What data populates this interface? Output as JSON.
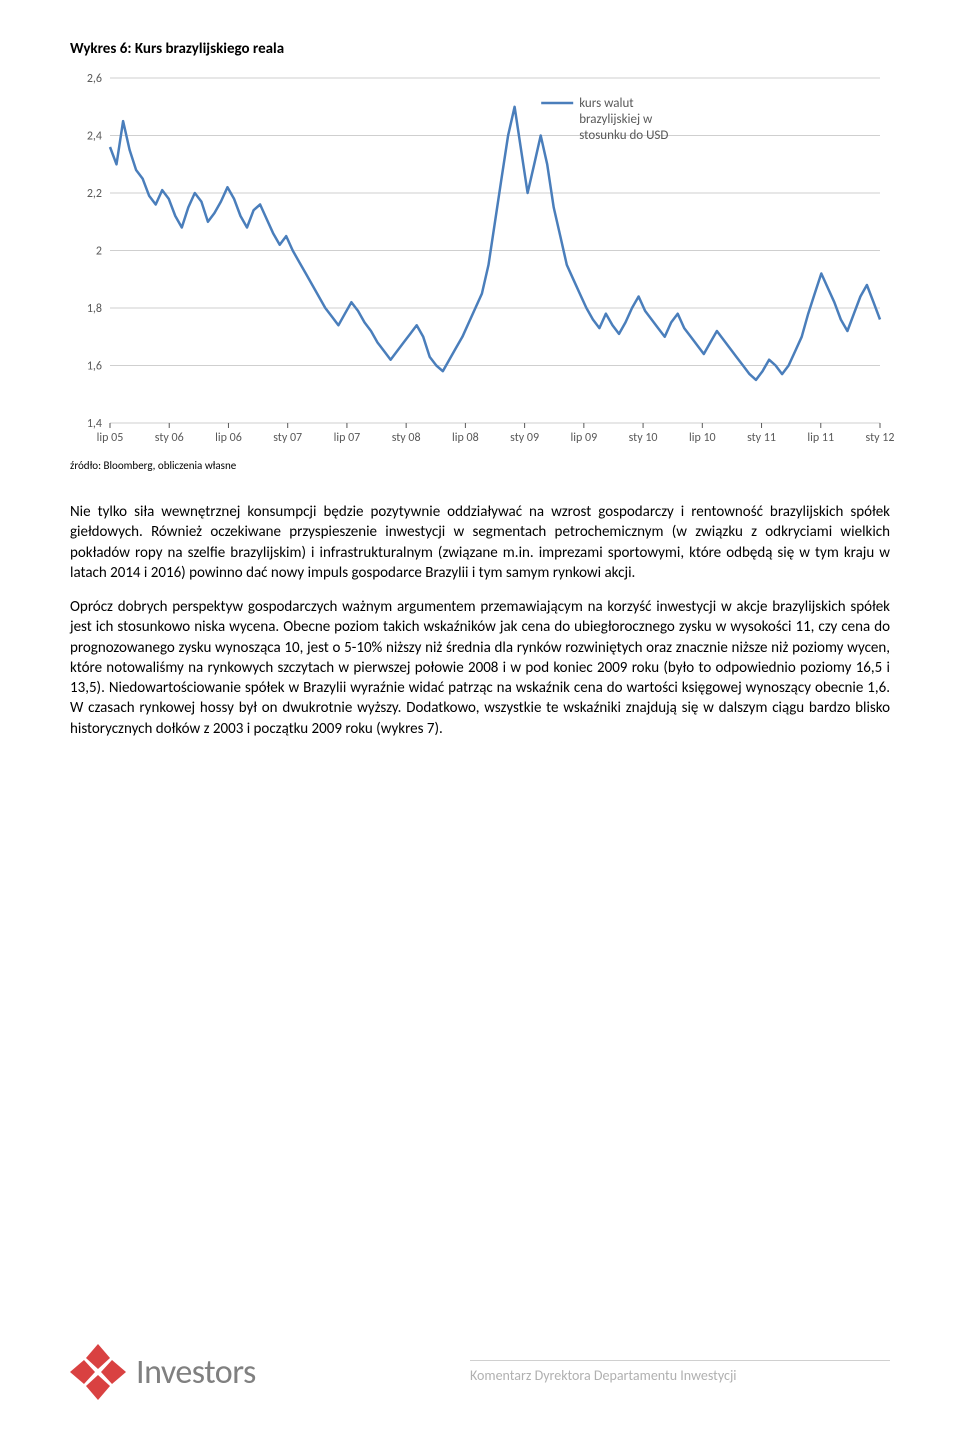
{
  "chart": {
    "type": "line",
    "title": "Wykres 6: Kurs brazylijskiego reala",
    "source": "źródło: Bloomberg, obliczenia własne",
    "series_name_1": "kurs walut",
    "series_name_2": "brazylijskiej w",
    "series_name_3": "stosunku do USD",
    "series_color": "#4a7ebb",
    "background_color": "#ffffff",
    "grid_color": "#bfbfbf",
    "axis_color": "#595959",
    "y_ticks": [
      "2,6",
      "2,4",
      "2,2",
      "2",
      "1,8",
      "1,6",
      "1,4"
    ],
    "y_values": [
      2.6,
      2.4,
      2.2,
      2.0,
      1.8,
      1.6,
      1.4
    ],
    "x_labels": [
      "lip 05",
      "sty 06",
      "lip 06",
      "sty 07",
      "lip 07",
      "sty 08",
      "lip 08",
      "sty 09",
      "lip 09",
      "sty 10",
      "lip 10",
      "sty 11",
      "lip 11",
      "sty 12"
    ],
    "data": [
      2.36,
      2.3,
      2.45,
      2.35,
      2.28,
      2.25,
      2.19,
      2.16,
      2.21,
      2.18,
      2.12,
      2.08,
      2.15,
      2.2,
      2.17,
      2.1,
      2.13,
      2.17,
      2.22,
      2.18,
      2.12,
      2.08,
      2.14,
      2.16,
      2.11,
      2.06,
      2.02,
      2.05,
      2.0,
      1.96,
      1.92,
      1.88,
      1.84,
      1.8,
      1.77,
      1.74,
      1.78,
      1.82,
      1.79,
      1.75,
      1.72,
      1.68,
      1.65,
      1.62,
      1.65,
      1.68,
      1.71,
      1.74,
      1.7,
      1.63,
      1.6,
      1.58,
      1.62,
      1.66,
      1.7,
      1.75,
      1.8,
      1.85,
      1.95,
      2.1,
      2.25,
      2.4,
      2.5,
      2.35,
      2.2,
      2.3,
      2.4,
      2.3,
      2.15,
      2.05,
      1.95,
      1.9,
      1.85,
      1.8,
      1.76,
      1.73,
      1.78,
      1.74,
      1.71,
      1.75,
      1.8,
      1.84,
      1.79,
      1.76,
      1.73,
      1.7,
      1.75,
      1.78,
      1.73,
      1.7,
      1.67,
      1.64,
      1.68,
      1.72,
      1.69,
      1.66,
      1.63,
      1.6,
      1.57,
      1.55,
      1.58,
      1.62,
      1.6,
      1.57,
      1.6,
      1.65,
      1.7,
      1.78,
      1.85,
      1.92,
      1.87,
      1.82,
      1.76,
      1.72,
      1.78,
      1.84,
      1.88,
      1.82,
      1.76
    ]
  },
  "paragraphs": {
    "p1": "Nie tylko siła wewnętrznej konsumpcji będzie pozytywnie oddziaływać na wzrost gospodarczy i rentowność brazylijskich spółek giełdowych. Również oczekiwane przyspieszenie inwestycji w segmentach petrochemicznym (w związku z odkryciami wielkich pokładów ropy na szelfie brazylijskim) i infrastrukturalnym (związane m.in. imprezami sportowymi, które odbędą się w tym kraju w latach 2014 i 2016) powinno dać nowy impuls gospodarce Brazylii i tym samym rynkowi akcji.",
    "p2": "Oprócz dobrych perspektyw gospodarczych ważnym argumentem przemawiającym na korzyść inwestycji w akcje brazylijskich spółek jest ich stosunkowo niska wycena. Obecne poziom takich wskaźników jak cena do ubiegłorocznego zysku w wysokości 11, czy cena do prognozowanego zysku wynosząca 10, jest o 5-10% niższy niż średnia dla rynków rozwiniętych oraz znacznie niższe niż poziomy wycen, które notowaliśmy na rynkowych szczytach w pierwszej połowie 2008 i w pod koniec 2009 roku (było to odpowiednio poziomy 16,5 i 13,5). Niedowartościowanie spółek w Brazylii wyraźnie widać patrząc na wskaźnik cena do wartości księgowej wynoszący obecnie 1,6. W czasach rynkowej hossy był on dwukrotnie wyższy. Dodatkowo, wszystkie te wskaźniki znajdują się w dalszym ciągu bardzo blisko historycznych dołków z 2003 i początku 2009 roku (wykres 7)."
  },
  "footer": {
    "logo_text": "Investors",
    "right_text": "Komentarz Dyrektora Departamentu Inwestycji",
    "logo_red": "#d94141",
    "logo_grey": "#808080"
  }
}
